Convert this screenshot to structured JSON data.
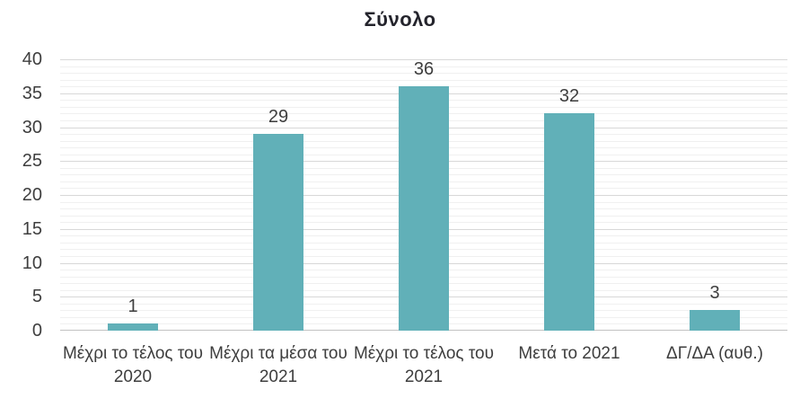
{
  "colors": {
    "bar": "#61B0B8",
    "title": "#24242C",
    "text": "#3E3E3E",
    "grid_major": "#D8D8D8",
    "grid_minor": "#F0F0F0",
    "axis_line": "#C2C2C2"
  },
  "chart_data": {
    "type": "bar",
    "title": "Σύνολο",
    "categories": [
      "Μέχρι το τέλος του 2020",
      "Μέχρι τα μέσα του 2021",
      "Μέχρι το τέλος του 2021",
      "Μετά το 2021",
      "ΔΓ/ΔΑ (αυθ.)"
    ],
    "values": [
      1,
      29,
      36,
      32,
      3
    ],
    "xlabel": "",
    "ylabel": "",
    "ylim": [
      0,
      40
    ],
    "ytick_step": 5,
    "minor_tick_step": 1,
    "yticks": [
      0,
      5,
      10,
      15,
      20,
      25,
      30,
      35,
      40
    ],
    "grid": true,
    "legend_position": "none",
    "data_labels": true,
    "bar_color": "#61B0B8"
  }
}
